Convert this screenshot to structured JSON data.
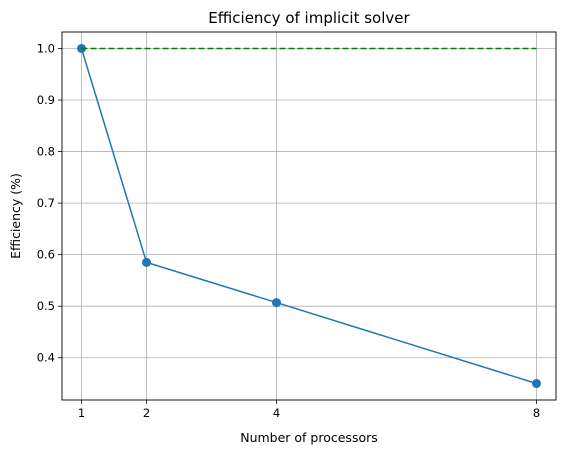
{
  "chart_data": {
    "type": "line",
    "title": "Efficiency of implicit solver",
    "xlabel": "Number of processors",
    "ylabel": "Efficiency (%)",
    "x": [
      1,
      2,
      4,
      8
    ],
    "series": [
      {
        "values": [
          1.0,
          0.585,
          0.507,
          0.35
        ],
        "color": "#1f77b4",
        "style": "solid",
        "markers": true
      },
      {
        "values": [
          1.0,
          1.0,
          1.0,
          1.0
        ],
        "color": "#008000",
        "style": "dashed",
        "markers": false
      }
    ],
    "xticks": [
      "1",
      "2",
      "4",
      "8"
    ],
    "yticks": [
      "0.4",
      "0.5",
      "0.6",
      "0.7",
      "0.8",
      "0.9",
      "1.0"
    ],
    "xlim": [
      0.7,
      8.3
    ],
    "ylim": [
      0.318,
      1.032
    ],
    "grid": true
  }
}
